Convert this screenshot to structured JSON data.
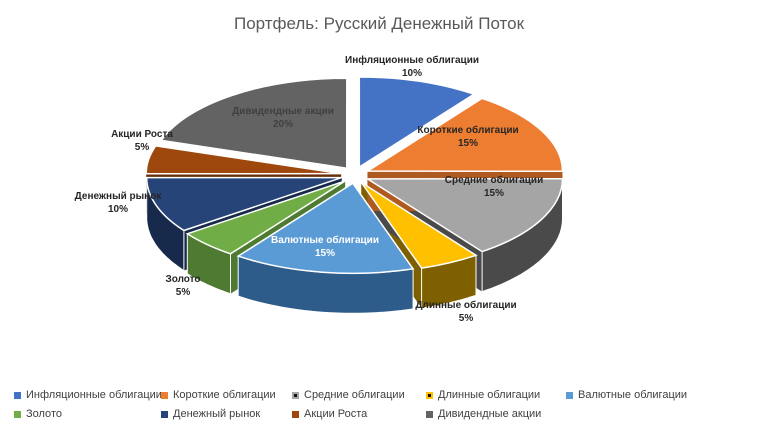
{
  "chart_data": {
    "type": "pie",
    "title": "Портфель: Русский Денежный Поток",
    "slices": [
      {
        "name": "Инфляционные облигации",
        "value": 10,
        "pct_label": "10%",
        "color": "#4472C4",
        "side": "#2F528F"
      },
      {
        "name": "Короткие облигации",
        "value": 15,
        "pct_label": "15%",
        "color": "#ED7D31",
        "side": "#AE5A21"
      },
      {
        "name": "Средние облигации",
        "value": 15,
        "pct_label": "15%",
        "color": "#A5A5A5",
        "side": "#4A4A4A"
      },
      {
        "name": "Длинные облигации",
        "value": 5,
        "pct_label": "5%",
        "color": "#FFC000",
        "side": "#7F6000"
      },
      {
        "name": "Валютные облигации",
        "value": 15,
        "pct_label": "15%",
        "color": "#5B9BD5",
        "side": "#2E5C8A"
      },
      {
        "name": "Золото",
        "value": 5,
        "pct_label": "5%",
        "color": "#70AD47",
        "side": "#4E7A31"
      },
      {
        "name": "Денежный рынок",
        "value": 10,
        "pct_label": "10%",
        "color": "#264478",
        "side": "#172A4B"
      },
      {
        "name": "Акции Роста",
        "value": 5,
        "pct_label": "5%",
        "color": "#9E480E",
        "side": "#6A2F08"
      },
      {
        "name": "Дивидендные акции",
        "value": 20,
        "pct_label": "20%",
        "color": "#636363",
        "side": "#3A3A3A"
      }
    ],
    "legend_position": "bottom"
  }
}
